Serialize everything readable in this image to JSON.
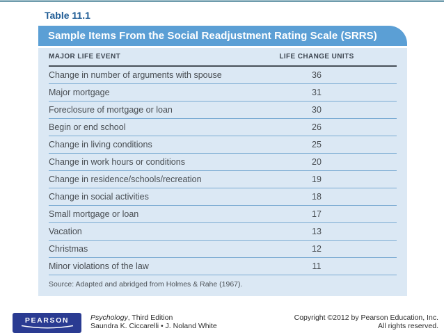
{
  "slide": {
    "table_label": "Table 11.1",
    "table_title": "Sample Items From the Social Readjustment Rating Scale (SRRS)"
  },
  "table": {
    "column_headers": {
      "event": "MAJOR LIFE EVENT",
      "units": "LIFE CHANGE UNITS"
    },
    "rows": [
      {
        "event": "Change in number of arguments with spouse",
        "units": "36"
      },
      {
        "event": "Major mortgage",
        "units": "31"
      },
      {
        "event": "Foreclosure of mortgage or loan",
        "units": "30"
      },
      {
        "event": "Begin or end school",
        "units": "26"
      },
      {
        "event": "Change in living conditions",
        "units": "25"
      },
      {
        "event": "Change in work hours or conditions",
        "units": "20"
      },
      {
        "event": "Change in residence/schools/recreation",
        "units": "19"
      },
      {
        "event": "Change in social activities",
        "units": "18"
      },
      {
        "event": "Small mortgage or loan",
        "units": "17"
      },
      {
        "event": "Vacation",
        "units": "13"
      },
      {
        "event": "Christmas",
        "units": "12"
      },
      {
        "event": "Minor violations of the law",
        "units": "11"
      }
    ],
    "source_note": "Source: Adapted and abridged from Holmes & Rahe (1967)."
  },
  "footer": {
    "logo_text": "PEARSON",
    "book_title": "Psychology",
    "book_edition": ", Third Edition",
    "authors": "Saundra K. Ciccarelli • J. Noland White",
    "copyright_line1": "Copyright ©2012 by Pearson Education, Inc.",
    "copyright_line2": "All rights reserved."
  },
  "colors": {
    "header_band_blue": "#5b9fd5",
    "table_body_blue": "#dbe8f4",
    "table_label_blue": "#1f5c95",
    "row_divider_blue": "#79aad2",
    "header_rule_dark": "#474f58",
    "footer_rule_teal": "#53879c",
    "pearson_logo_blue": "#2a3b92"
  }
}
